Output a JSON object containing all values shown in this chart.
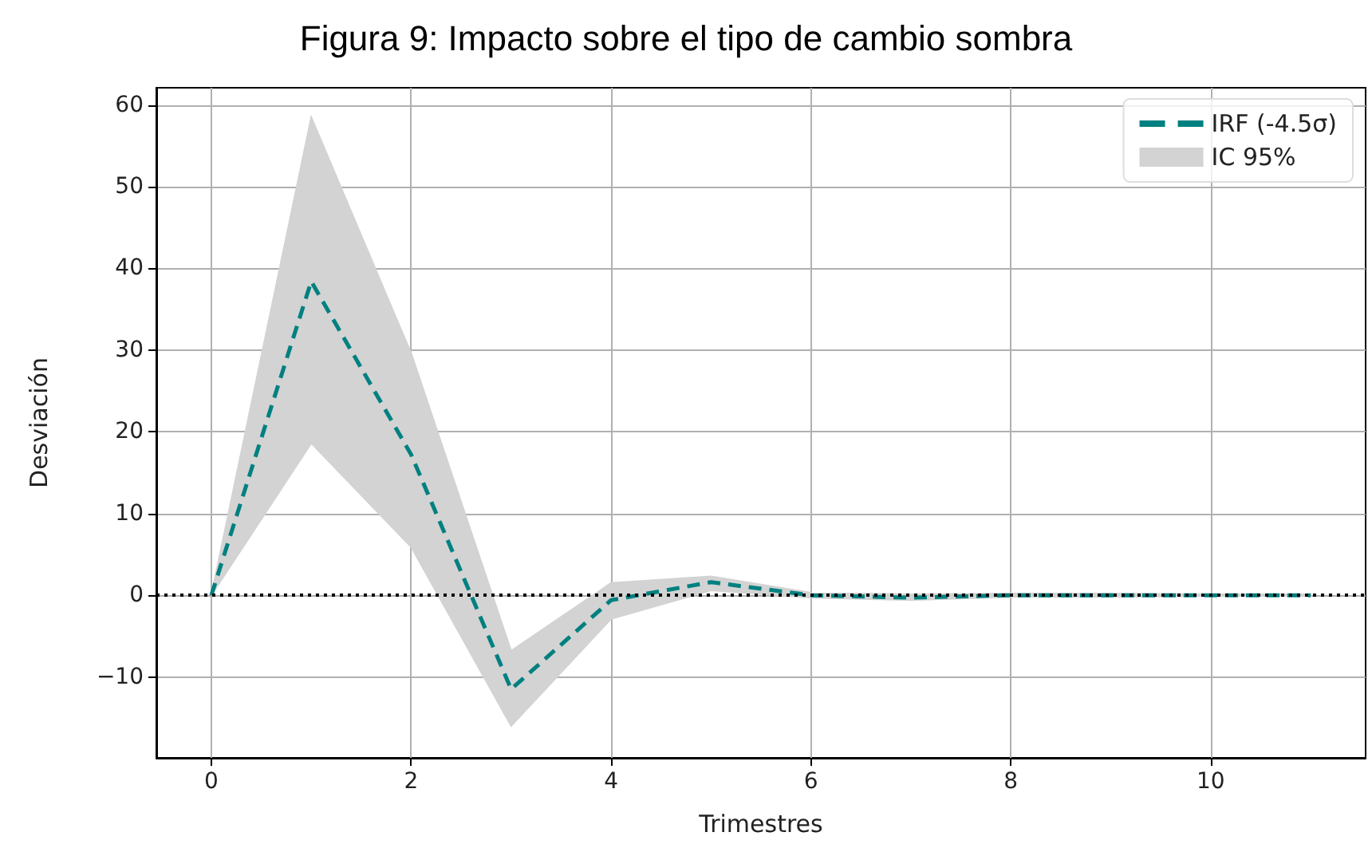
{
  "chart_data": {
    "type": "line",
    "title": "Figura 9: Impacto sobre el tipo de cambio sombra",
    "xlabel": "Trimestres",
    "ylabel": "Desviación",
    "x": [
      0,
      1,
      2,
      3,
      4,
      5,
      6,
      7,
      8,
      9,
      10,
      11
    ],
    "series": [
      {
        "name": "IRF (-4.5σ)",
        "color": "#008080",
        "line_style": "dashed",
        "values": [
          0,
          38.4,
          17.2,
          -11.5,
          -0.6,
          1.6,
          0,
          -0.3,
          0,
          0,
          0,
          0
        ],
        "lower": [
          0,
          18.6,
          5.9,
          -16,
          -2.9,
          0.6,
          -0.3,
          -0.6,
          -0.2,
          -0.2,
          -0.1,
          -0.1
        ],
        "upper": [
          0,
          58.5,
          29.6,
          -6.8,
          1.5,
          2.3,
          0.3,
          0.1,
          0.2,
          0.2,
          0.1,
          0.1
        ]
      },
      {
        "name": "IC 95%",
        "type": "area",
        "color": "#d3d3d3",
        "values": [
          null,
          null,
          null,
          null,
          null,
          null,
          null,
          null,
          null,
          null,
          null,
          null
        ]
      }
    ],
    "xlim": [
      -0.55,
      11.55
    ],
    "ylim": [
      -19.9,
      62.1
    ],
    "xticks": [
      0,
      2,
      4,
      6,
      8,
      10
    ],
    "yticks": [
      -10,
      0,
      10,
      20,
      30,
      40,
      50,
      60
    ],
    "ref_lines": [
      {
        "axis": "y",
        "value": 0,
        "color": "#000000",
        "line_style": "dotted"
      }
    ],
    "grid": true,
    "legend": "top right",
    "marker": "none"
  }
}
